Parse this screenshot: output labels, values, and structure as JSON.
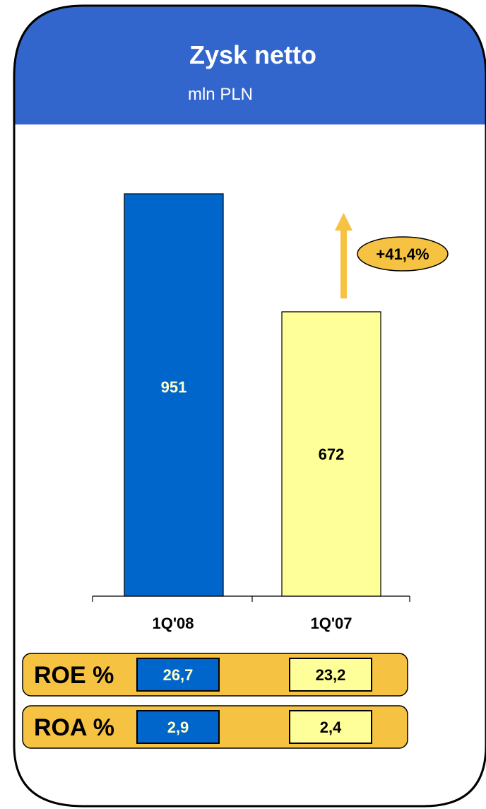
{
  "chart_data": {
    "type": "bar",
    "title": "Zysk netto",
    "subtitle": "mln PLN",
    "categories": [
      "1Q'08",
      "1Q'07"
    ],
    "values": [
      951,
      672
    ],
    "value_labels": [
      "951",
      "672"
    ],
    "ylim": [
      0,
      951
    ],
    "grid": false,
    "change_label": "+41,4%"
  },
  "metrics": [
    {
      "label": "ROE %",
      "values": [
        "26,7",
        "23,2"
      ]
    },
    {
      "label": "ROA %",
      "values": [
        "2,9",
        "2,4"
      ]
    }
  ],
  "colors": {
    "header": "#3366cc",
    "bar_current": "#0066cc",
    "bar_previous": "#ffff99",
    "accent": "#f5c242",
    "current_text": "#ffffcc",
    "previous_text": "#000000"
  }
}
